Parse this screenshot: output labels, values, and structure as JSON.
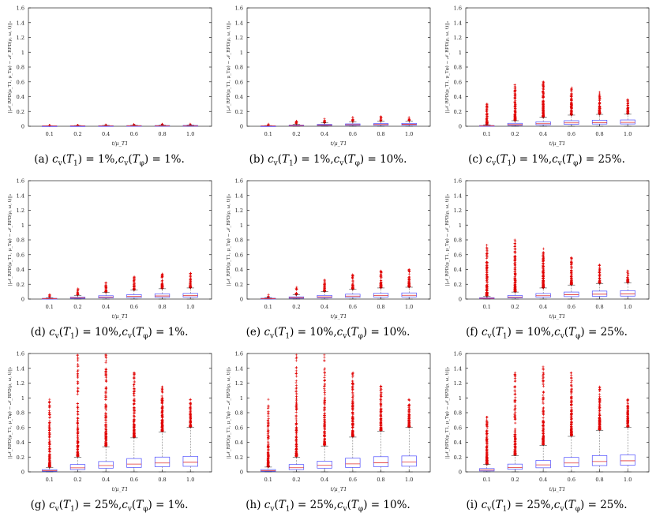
{
  "figure": {
    "y_axis_label": "||𝒩_RPD(μ_T1, μ_Tφ) − 𝒩_RPD(ρ, ω, t)||₂",
    "x_axis_label": "t/μ_T1",
    "colors": {
      "box": "#4d4dff",
      "median": "#e03030",
      "outlier": "#e00000",
      "whisker": "#555555",
      "axis": "#222222"
    }
  },
  "chart_data": [
    {
      "type": "box",
      "caption_label": "(a)",
      "caption_t1": "1%",
      "caption_tphi": "1%",
      "categories": [
        "0.1",
        "0.2",
        "0.4",
        "0.6",
        "0.8",
        "1.0"
      ],
      "ylim": [
        0,
        1.6
      ],
      "yticks": [
        "0",
        "0.2",
        "0.4",
        "0.6",
        "0.8",
        "1",
        "1.2",
        "1.4",
        "1.6"
      ],
      "boxes": [
        {
          "q1": 0.002,
          "med": 0.004,
          "q3": 0.006,
          "lo": 0.0,
          "hi": 0.008,
          "omin": 0.009,
          "omax": 0.012
        },
        {
          "q1": 0.002,
          "med": 0.004,
          "q3": 0.007,
          "lo": 0.0,
          "hi": 0.01,
          "omin": 0.011,
          "omax": 0.015
        },
        {
          "q1": 0.003,
          "med": 0.005,
          "q3": 0.008,
          "lo": 0.0,
          "hi": 0.012,
          "omin": 0.013,
          "omax": 0.02
        },
        {
          "q1": 0.003,
          "med": 0.006,
          "q3": 0.009,
          "lo": 0.0,
          "hi": 0.014,
          "omin": 0.015,
          "omax": 0.025
        },
        {
          "q1": 0.003,
          "med": 0.006,
          "q3": 0.01,
          "lo": 0.0,
          "hi": 0.016,
          "omin": 0.017,
          "omax": 0.03
        },
        {
          "q1": 0.004,
          "med": 0.007,
          "q3": 0.011,
          "lo": 0.0,
          "hi": 0.017,
          "omin": 0.018,
          "omax": 0.03
        }
      ]
    },
    {
      "type": "box",
      "caption_label": "(b)",
      "caption_t1": "1%",
      "caption_tphi": "10%",
      "categories": [
        "0.1",
        "0.2",
        "0.4",
        "0.6",
        "0.8",
        "1.0"
      ],
      "ylim": [
        0,
        1.6
      ],
      "yticks": [
        "0",
        "0.2",
        "0.4",
        "0.6",
        "0.8",
        "1",
        "1.2",
        "1.4",
        "1.6"
      ],
      "boxes": [
        {
          "q1": 0.002,
          "med": 0.004,
          "q3": 0.006,
          "lo": 0.0,
          "hi": 0.01,
          "omin": 0.011,
          "omax": 0.03
        },
        {
          "q1": 0.006,
          "med": 0.01,
          "q3": 0.015,
          "lo": 0.0,
          "hi": 0.028,
          "omin": 0.03,
          "omax": 0.07
        },
        {
          "q1": 0.01,
          "med": 0.017,
          "q3": 0.025,
          "lo": 0.0,
          "hi": 0.045,
          "omin": 0.047,
          "omax": 0.1
        },
        {
          "q1": 0.013,
          "med": 0.021,
          "q3": 0.032,
          "lo": 0.0,
          "hi": 0.06,
          "omin": 0.062,
          "omax": 0.12
        },
        {
          "q1": 0.015,
          "med": 0.024,
          "q3": 0.036,
          "lo": 0.0,
          "hi": 0.068,
          "omin": 0.07,
          "omax": 0.13
        },
        {
          "q1": 0.016,
          "med": 0.026,
          "q3": 0.039,
          "lo": 0.0,
          "hi": 0.072,
          "omin": 0.074,
          "omax": 0.12
        }
      ]
    },
    {
      "type": "box",
      "caption_label": "(c)",
      "caption_t1": "1%",
      "caption_tphi": "25%",
      "categories": [
        "0.1",
        "0.2",
        "0.4",
        "0.6",
        "0.8",
        "1.0"
      ],
      "ylim": [
        0,
        1.6
      ],
      "yticks": [
        "0",
        "0.2",
        "0.4",
        "0.6",
        "0.8",
        "1",
        "1.2",
        "1.4",
        "1.6"
      ],
      "boxes": [
        {
          "q1": 0.003,
          "med": 0.006,
          "q3": 0.01,
          "lo": 0.0,
          "hi": 0.02,
          "omin": 0.022,
          "omax": 0.3
        },
        {
          "q1": 0.012,
          "med": 0.022,
          "q3": 0.04,
          "lo": 0.0,
          "hi": 0.075,
          "omin": 0.08,
          "omax": 0.56
        },
        {
          "q1": 0.02,
          "med": 0.035,
          "q3": 0.06,
          "lo": 0.0,
          "hi": 0.12,
          "omin": 0.125,
          "omax": 0.6
        },
        {
          "q1": 0.026,
          "med": 0.045,
          "q3": 0.075,
          "lo": 0.0,
          "hi": 0.15,
          "omin": 0.155,
          "omax": 0.52
        },
        {
          "q1": 0.03,
          "med": 0.05,
          "q3": 0.082,
          "lo": 0.0,
          "hi": 0.16,
          "omin": 0.165,
          "omax": 0.46
        },
        {
          "q1": 0.031,
          "med": 0.052,
          "q3": 0.085,
          "lo": 0.0,
          "hi": 0.165,
          "omin": 0.17,
          "omax": 0.36
        }
      ]
    },
    {
      "type": "box",
      "caption_label": "(d)",
      "caption_t1": "10%",
      "caption_tphi": "1%",
      "categories": [
        "0.1",
        "0.2",
        "0.4",
        "0.6",
        "0.8",
        "1.0"
      ],
      "ylim": [
        0,
        1.6
      ],
      "yticks": [
        "0",
        "0.2",
        "0.4",
        "0.6",
        "0.8",
        "1",
        "1.2",
        "1.4",
        "1.6"
      ],
      "boxes": [
        {
          "q1": 0.003,
          "med": 0.006,
          "q3": 0.01,
          "lo": 0.0,
          "hi": 0.018,
          "omin": 0.02,
          "omax": 0.06
        },
        {
          "q1": 0.008,
          "med": 0.015,
          "q3": 0.026,
          "lo": 0.0,
          "hi": 0.05,
          "omin": 0.055,
          "omax": 0.14
        },
        {
          "q1": 0.015,
          "med": 0.027,
          "q3": 0.045,
          "lo": 0.0,
          "hi": 0.09,
          "omin": 0.095,
          "omax": 0.22
        },
        {
          "q1": 0.02,
          "med": 0.036,
          "q3": 0.06,
          "lo": 0.0,
          "hi": 0.12,
          "omin": 0.125,
          "omax": 0.3
        },
        {
          "q1": 0.024,
          "med": 0.042,
          "q3": 0.07,
          "lo": 0.0,
          "hi": 0.14,
          "omin": 0.145,
          "omax": 0.34
        },
        {
          "q1": 0.026,
          "med": 0.046,
          "q3": 0.076,
          "lo": 0.0,
          "hi": 0.15,
          "omin": 0.155,
          "omax": 0.35
        }
      ]
    },
    {
      "type": "box",
      "caption_label": "(e)",
      "caption_t1": "10%",
      "caption_tphi": "10%",
      "categories": [
        "0.1",
        "0.2",
        "0.4",
        "0.6",
        "0.8",
        "1.0"
      ],
      "ylim": [
        0,
        1.6
      ],
      "yticks": [
        "0",
        "0.2",
        "0.4",
        "0.6",
        "0.8",
        "1",
        "1.2",
        "1.4",
        "1.6"
      ],
      "boxes": [
        {
          "q1": 0.003,
          "med": 0.006,
          "q3": 0.011,
          "lo": 0.0,
          "hi": 0.02,
          "omin": 0.022,
          "omax": 0.06
        },
        {
          "q1": 0.01,
          "med": 0.018,
          "q3": 0.03,
          "lo": 0.0,
          "hi": 0.058,
          "omin": 0.062,
          "omax": 0.16
        },
        {
          "q1": 0.017,
          "med": 0.03,
          "q3": 0.05,
          "lo": 0.0,
          "hi": 0.1,
          "omin": 0.105,
          "omax": 0.26
        },
        {
          "q1": 0.023,
          "med": 0.04,
          "q3": 0.066,
          "lo": 0.0,
          "hi": 0.13,
          "omin": 0.135,
          "omax": 0.33
        },
        {
          "q1": 0.027,
          "med": 0.047,
          "q3": 0.077,
          "lo": 0.0,
          "hi": 0.15,
          "omin": 0.155,
          "omax": 0.38
        },
        {
          "q1": 0.029,
          "med": 0.051,
          "q3": 0.083,
          "lo": 0.0,
          "hi": 0.16,
          "omin": 0.165,
          "omax": 0.4
        }
      ]
    },
    {
      "type": "box",
      "caption_label": "(f)",
      "caption_t1": "10%",
      "caption_tphi": "25%",
      "categories": [
        "0.1",
        "0.2",
        "0.4",
        "0.6",
        "0.8",
        "1.0"
      ],
      "ylim": [
        0,
        1.6
      ],
      "yticks": [
        "0",
        "0.2",
        "0.4",
        "0.6",
        "0.8",
        "1",
        "1.2",
        "1.4",
        "1.6"
      ],
      "boxes": [
        {
          "q1": 0.005,
          "med": 0.01,
          "q3": 0.018,
          "lo": 0.0,
          "hi": 0.038,
          "omin": 0.04,
          "omax": 0.73
        },
        {
          "q1": 0.015,
          "med": 0.028,
          "q3": 0.048,
          "lo": 0.0,
          "hi": 0.095,
          "omin": 0.1,
          "omax": 0.8
        },
        {
          "q1": 0.025,
          "med": 0.045,
          "q3": 0.075,
          "lo": 0.0,
          "hi": 0.15,
          "omin": 0.155,
          "omax": 0.68
        },
        {
          "q1": 0.033,
          "med": 0.058,
          "q3": 0.095,
          "lo": 0.0,
          "hi": 0.19,
          "omin": 0.195,
          "omax": 0.56
        },
        {
          "q1": 0.038,
          "med": 0.066,
          "q3": 0.108,
          "lo": 0.0,
          "hi": 0.21,
          "omin": 0.215,
          "omax": 0.46
        },
        {
          "q1": 0.04,
          "med": 0.07,
          "q3": 0.114,
          "lo": 0.0,
          "hi": 0.22,
          "omin": 0.225,
          "omax": 0.38
        }
      ]
    },
    {
      "type": "box",
      "caption_label": "(g)",
      "caption_t1": "25%",
      "caption_tphi": "1%",
      "categories": [
        "0.1",
        "0.2",
        "0.4",
        "0.6",
        "0.8",
        "1.0"
      ],
      "ylim": [
        0,
        1.6
      ],
      "yticks": [
        "0",
        "0.2",
        "0.4",
        "0.6",
        "0.8",
        "1",
        "1.2",
        "1.4",
        "1.6"
      ],
      "boxes": [
        {
          "q1": 0.008,
          "med": 0.016,
          "q3": 0.03,
          "lo": 0.0,
          "hi": 0.06,
          "omin": 0.065,
          "omax": 0.98
        },
        {
          "q1": 0.03,
          "med": 0.055,
          "q3": 0.1,
          "lo": 0.0,
          "hi": 0.2,
          "omin": 0.21,
          "omax": 1.58
        },
        {
          "q1": 0.05,
          "med": 0.085,
          "q3": 0.14,
          "lo": 0.0,
          "hi": 0.34,
          "omin": 0.35,
          "omax": 1.58
        },
        {
          "q1": 0.06,
          "med": 0.105,
          "q3": 0.18,
          "lo": 0.0,
          "hi": 0.46,
          "omin": 0.47,
          "omax": 1.34
        },
        {
          "q1": 0.07,
          "med": 0.12,
          "q3": 0.2,
          "lo": 0.0,
          "hi": 0.54,
          "omin": 0.55,
          "omax": 1.15
        },
        {
          "q1": 0.075,
          "med": 0.13,
          "q3": 0.21,
          "lo": 0.0,
          "hi": 0.6,
          "omin": 0.61,
          "omax": 0.98
        }
      ]
    },
    {
      "type": "box",
      "caption_label": "(h)",
      "caption_t1": "25%",
      "caption_tphi": "10%",
      "categories": [
        "0.1",
        "0.2",
        "0.4",
        "0.6",
        "0.8",
        "1.0"
      ],
      "ylim": [
        0,
        1.6
      ],
      "yticks": [
        "0",
        "0.2",
        "0.4",
        "0.6",
        "0.8",
        "1",
        "1.2",
        "1.4",
        "1.6"
      ],
      "boxes": [
        {
          "q1": 0.008,
          "med": 0.017,
          "q3": 0.031,
          "lo": 0.0,
          "hi": 0.065,
          "omin": 0.07,
          "omax": 0.98
        },
        {
          "q1": 0.03,
          "med": 0.056,
          "q3": 0.1,
          "lo": 0.0,
          "hi": 0.2,
          "omin": 0.21,
          "omax": 1.58
        },
        {
          "q1": 0.05,
          "med": 0.088,
          "q3": 0.145,
          "lo": 0.0,
          "hi": 0.35,
          "omin": 0.36,
          "omax": 1.58
        },
        {
          "q1": 0.06,
          "med": 0.108,
          "q3": 0.185,
          "lo": 0.0,
          "hi": 0.47,
          "omin": 0.48,
          "omax": 1.34
        },
        {
          "q1": 0.07,
          "med": 0.122,
          "q3": 0.205,
          "lo": 0.0,
          "hi": 0.55,
          "omin": 0.56,
          "omax": 1.16
        },
        {
          "q1": 0.076,
          "med": 0.132,
          "q3": 0.215,
          "lo": 0.0,
          "hi": 0.6,
          "omin": 0.61,
          "omax": 0.98
        }
      ]
    },
    {
      "type": "box",
      "caption_label": "(i)",
      "caption_t1": "25%",
      "caption_tphi": "25%",
      "categories": [
        "0.1",
        "0.2",
        "0.4",
        "0.6",
        "0.8",
        "1.0"
      ],
      "ylim": [
        0,
        1.6
      ],
      "yticks": [
        "0",
        "0.2",
        "0.4",
        "0.6",
        "0.8",
        "1",
        "1.2",
        "1.4",
        "1.6"
      ],
      "boxes": [
        {
          "q1": 0.012,
          "med": 0.024,
          "q3": 0.045,
          "lo": 0.0,
          "hi": 0.1,
          "omin": 0.105,
          "omax": 0.74
        },
        {
          "q1": 0.035,
          "med": 0.06,
          "q3": 0.105,
          "lo": 0.0,
          "hi": 0.22,
          "omin": 0.23,
          "omax": 1.34
        },
        {
          "q1": 0.055,
          "med": 0.095,
          "q3": 0.155,
          "lo": 0.0,
          "hi": 0.36,
          "omin": 0.37,
          "omax": 1.42
        },
        {
          "q1": 0.07,
          "med": 0.12,
          "q3": 0.195,
          "lo": 0.0,
          "hi": 0.48,
          "omin": 0.49,
          "omax": 1.34
        },
        {
          "q1": 0.085,
          "med": 0.14,
          "q3": 0.22,
          "lo": 0.0,
          "hi": 0.56,
          "omin": 0.57,
          "omax": 1.15
        },
        {
          "q1": 0.09,
          "med": 0.15,
          "q3": 0.23,
          "lo": 0.0,
          "hi": 0.6,
          "omin": 0.61,
          "omax": 0.98
        }
      ]
    }
  ]
}
